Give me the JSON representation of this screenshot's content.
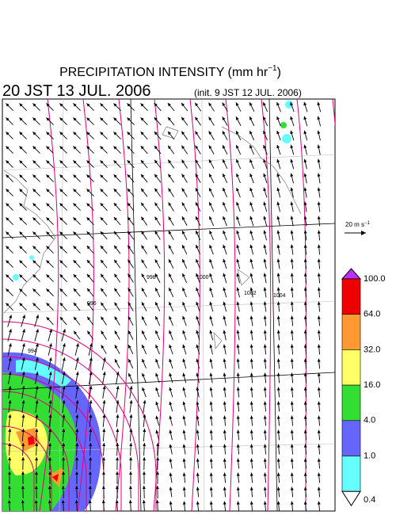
{
  "title": {
    "main": "PRECIPITATION INTENSITY (mm hr",
    "superscript": "−1",
    "close": ")"
  },
  "valid_time": "20 JST 13 JUL. 2006",
  "init_time": "(init. 9 JST 12 JUL. 2006)",
  "wind_legend": {
    "label": "20 m s",
    "superscript": "−1"
  },
  "contour_labels": [
    "994",
    "996",
    "998",
    "1000",
    "1002",
    "1004"
  ],
  "colorbar": {
    "labels": [
      "100.0",
      "64.0",
      "32.0",
      "16.0",
      "4.0",
      "1.0",
      "0.4"
    ],
    "colors": [
      "#ee0000",
      "#ff9933",
      "#ffff66",
      "#33dd33",
      "#6666ff",
      "#66ffff"
    ],
    "over_color": "#bb33ff",
    "under_color": "#ffffff"
  }
}
